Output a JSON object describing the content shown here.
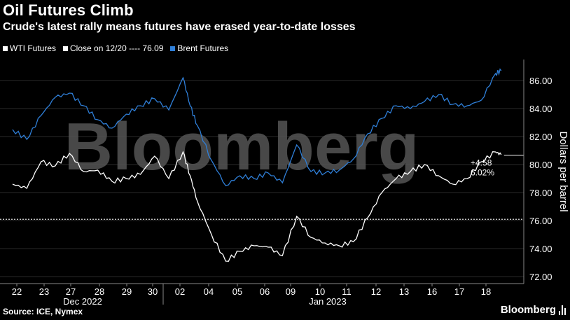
{
  "header": {
    "title": "Oil Futures Climb",
    "subtitle": "Crude's latest rally means futures have erased year-to-date losses"
  },
  "legend": {
    "wti": "WTI Futures",
    "close": "Close on 12/20 ---- 76.09",
    "brent": "Brent Futures"
  },
  "footer": {
    "source": "Source: ICE, Nymex",
    "brand": "Bloomberg"
  },
  "watermark": "Bloomberg",
  "colors": {
    "wti": "#ffffff",
    "brent": "#2f7fd8",
    "background": "#000000",
    "grid": "#2a2a2a"
  },
  "chart_data": {
    "type": "line",
    "title": "Oil Futures Climb",
    "subtitle": "Crude's latest rally means futures have erased year-to-date losses",
    "ylabel": "Dollars per barrel",
    "ylim": [
      72,
      87
    ],
    "y_ticks": [
      "72.00",
      "74.00",
      "76.00",
      "78.00",
      "80.00",
      "82.00",
      "84.00",
      "86.00"
    ],
    "x_ticks": [
      "22",
      "23",
      "27",
      "28",
      "29",
      "30",
      "02",
      "04",
      "05",
      "06",
      "09",
      "10",
      "11",
      "12",
      "13",
      "16",
      "17",
      "18"
    ],
    "month_labels": [
      "Dec 2022",
      "Jan 2023"
    ],
    "grid": "horizontal",
    "legend_position": "top-left",
    "reference_line": {
      "label": "Close on 12/20",
      "value": 76.09
    },
    "annotation": {
      "change": "+4.58",
      "percent": "6.02%",
      "value": 80.67
    },
    "series": [
      {
        "name": "WTI Futures",
        "color": "#ffffff",
        "x": [
          0,
          0.5,
          1,
          1.5,
          2,
          2.5,
          3,
          3.5,
          4,
          4.5,
          5,
          5.5,
          6,
          6.25,
          6.5,
          7,
          7.5,
          8,
          8.5,
          9,
          9.5,
          10,
          10.5,
          11,
          11.5,
          12,
          12.5,
          13,
          13.5,
          14,
          14.5,
          15,
          15.5,
          16,
          16.5,
          17,
          17.2
        ],
        "values": [
          78.6,
          78.3,
          80.2,
          79.9,
          80.8,
          79.5,
          79.6,
          78.8,
          79.0,
          79.3,
          80.6,
          79.0,
          80.9,
          79.2,
          77.4,
          75.0,
          73.1,
          73.8,
          74.2,
          74.1,
          73.5,
          76.3,
          74.8,
          74.4,
          74.2,
          74.5,
          76.2,
          78.0,
          79.0,
          79.5,
          80.0,
          79.2,
          78.6,
          79.0,
          80.2,
          80.9,
          80.7
        ]
      },
      {
        "name": "Brent Futures",
        "color": "#2f7fd8",
        "x": [
          0,
          0.5,
          1,
          1.5,
          2,
          2.5,
          3,
          3.5,
          4,
          4.5,
          5,
          5.5,
          6,
          6.25,
          6.5,
          7,
          7.5,
          8,
          8.5,
          9,
          9.5,
          10,
          10.5,
          11,
          11.5,
          12,
          12.5,
          13,
          13.5,
          14,
          14.5,
          15,
          15.5,
          16,
          16.5,
          17,
          17.2
        ],
        "values": [
          82.5,
          81.8,
          83.5,
          84.8,
          85.1,
          84.2,
          83.2,
          82.6,
          83.6,
          84.2,
          84.7,
          83.9,
          86.2,
          84.2,
          82.8,
          80.3,
          78.5,
          79.2,
          79.0,
          79.4,
          78.7,
          81.4,
          79.5,
          79.4,
          79.6,
          80.4,
          82.2,
          83.3,
          84.2,
          84.0,
          84.5,
          85.0,
          84.3,
          84.2,
          84.6,
          86.5,
          86.7
        ]
      }
    ]
  }
}
